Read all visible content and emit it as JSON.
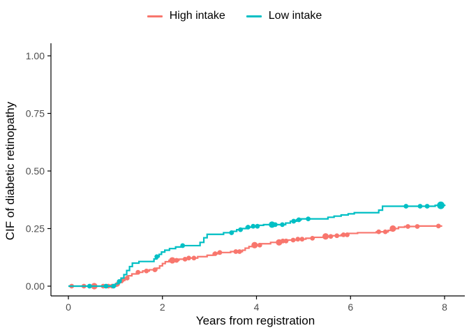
{
  "figure": {
    "background": "#ffffff",
    "tick_label_color": "#4d4d4d",
    "axis_color": "#000000"
  },
  "legend": {
    "position": "top-center",
    "items": [
      {
        "label": "High intake",
        "color": "#F8766D"
      },
      {
        "label": "Low intake",
        "color": "#00BFC4"
      }
    ]
  },
  "chart_data": {
    "type": "line",
    "subtype": "step-cumulative-incidence",
    "title": "",
    "xlabel": "Years from registration",
    "ylabel": "CIF of diabetic retinopathy",
    "xlim": [
      0,
      8
    ],
    "ylim": [
      0,
      1
    ],
    "grid": false,
    "legend_position": "top",
    "xticks": [
      {
        "v": 0,
        "label": "0"
      },
      {
        "v": 2,
        "label": "2"
      },
      {
        "v": 4,
        "label": "4"
      },
      {
        "v": 6,
        "label": "6"
      },
      {
        "v": 8,
        "label": "8"
      }
    ],
    "yticks": [
      {
        "v": 0.0,
        "label": "0.00"
      },
      {
        "v": 0.25,
        "label": "0.25"
      },
      {
        "v": 0.5,
        "label": "0.50"
      },
      {
        "v": 0.75,
        "label": "0.75"
      },
      {
        "v": 1.0,
        "label": "1.00"
      }
    ],
    "series": [
      {
        "name": "High intake",
        "color": "#F8766D",
        "end": 7.95,
        "steps": [
          [
            0,
            0
          ],
          [
            1.02,
            0.008
          ],
          [
            1.08,
            0.016
          ],
          [
            1.14,
            0.025
          ],
          [
            1.2,
            0.035
          ],
          [
            1.27,
            0.045
          ],
          [
            1.35,
            0.053
          ],
          [
            1.45,
            0.06
          ],
          [
            1.58,
            0.066
          ],
          [
            1.72,
            0.071
          ],
          [
            1.88,
            0.078
          ],
          [
            1.94,
            0.088
          ],
          [
            2.0,
            0.098
          ],
          [
            2.06,
            0.106
          ],
          [
            2.14,
            0.112
          ],
          [
            2.35,
            0.117
          ],
          [
            2.55,
            0.122
          ],
          [
            2.75,
            0.128
          ],
          [
            2.95,
            0.134
          ],
          [
            3.08,
            0.141
          ],
          [
            3.18,
            0.146
          ],
          [
            3.45,
            0.15
          ],
          [
            3.7,
            0.156
          ],
          [
            3.76,
            0.165
          ],
          [
            3.84,
            0.172
          ],
          [
            3.95,
            0.178
          ],
          [
            4.1,
            0.184
          ],
          [
            4.3,
            0.19
          ],
          [
            4.5,
            0.196
          ],
          [
            4.65,
            0.2
          ],
          [
            4.85,
            0.204
          ],
          [
            5.05,
            0.208
          ],
          [
            5.2,
            0.212
          ],
          [
            5.45,
            0.216
          ],
          [
            5.6,
            0.219
          ],
          [
            5.8,
            0.223
          ],
          [
            5.95,
            0.229
          ],
          [
            6.15,
            0.232
          ],
          [
            6.55,
            0.236
          ],
          [
            6.8,
            0.242
          ],
          [
            6.9,
            0.25
          ],
          [
            7.02,
            0.256
          ],
          [
            7.15,
            0.259
          ],
          [
            7.45,
            0.261
          ]
        ],
        "censor_times": [
          0.07,
          0.33,
          0.55,
          0.74,
          0.85,
          0.93,
          1.04,
          1.14,
          1.25,
          1.48,
          1.66,
          1.84,
          2.21,
          2.3,
          2.48,
          2.56,
          2.67,
          3.12,
          3.22,
          3.56,
          3.64,
          3.96,
          4.07,
          4.48,
          4.56,
          4.63,
          4.78,
          4.88,
          4.97,
          5.19,
          5.47,
          5.58,
          5.71,
          5.85,
          5.93,
          6.6,
          6.74,
          6.9,
          7.22,
          7.42,
          7.87
        ],
        "censor_big": [
          0.55,
          2.21,
          3.96,
          4.48,
          5.47,
          6.9
        ]
      },
      {
        "name": "Low intake",
        "color": "#00BFC4",
        "end": 8.02,
        "steps": [
          [
            0,
            0
          ],
          [
            1.0,
            0.01
          ],
          [
            1.06,
            0.02
          ],
          [
            1.12,
            0.035
          ],
          [
            1.18,
            0.05
          ],
          [
            1.24,
            0.068
          ],
          [
            1.3,
            0.085
          ],
          [
            1.36,
            0.1
          ],
          [
            1.5,
            0.107
          ],
          [
            1.82,
            0.118
          ],
          [
            1.88,
            0.128
          ],
          [
            1.93,
            0.138
          ],
          [
            1.98,
            0.148
          ],
          [
            2.05,
            0.156
          ],
          [
            2.15,
            0.163
          ],
          [
            2.28,
            0.17
          ],
          [
            2.4,
            0.176
          ],
          [
            2.8,
            0.19
          ],
          [
            2.88,
            0.21
          ],
          [
            2.95,
            0.225
          ],
          [
            3.3,
            0.232
          ],
          [
            3.48,
            0.238
          ],
          [
            3.58,
            0.245
          ],
          [
            3.68,
            0.25
          ],
          [
            3.78,
            0.256
          ],
          [
            3.9,
            0.26
          ],
          [
            4.05,
            0.264
          ],
          [
            4.15,
            0.267
          ],
          [
            4.62,
            0.274
          ],
          [
            4.72,
            0.282
          ],
          [
            4.85,
            0.288
          ],
          [
            4.95,
            0.292
          ],
          [
            5.52,
            0.299
          ],
          [
            5.65,
            0.304
          ],
          [
            5.8,
            0.309
          ],
          [
            5.95,
            0.314
          ],
          [
            6.08,
            0.319
          ],
          [
            6.6,
            0.33
          ],
          [
            6.68,
            0.347
          ],
          [
            7.8,
            0.351
          ]
        ],
        "censor_times": [
          0.45,
          0.8,
          0.96,
          1.08,
          1.88,
          2.43,
          3.47,
          3.66,
          3.82,
          3.93,
          4.02,
          4.33,
          4.4,
          4.55,
          4.79,
          4.9,
          5.1,
          7.18,
          7.48,
          7.63,
          7.92
        ],
        "censor_big": [
          4.33,
          7.92
        ]
      }
    ]
  }
}
